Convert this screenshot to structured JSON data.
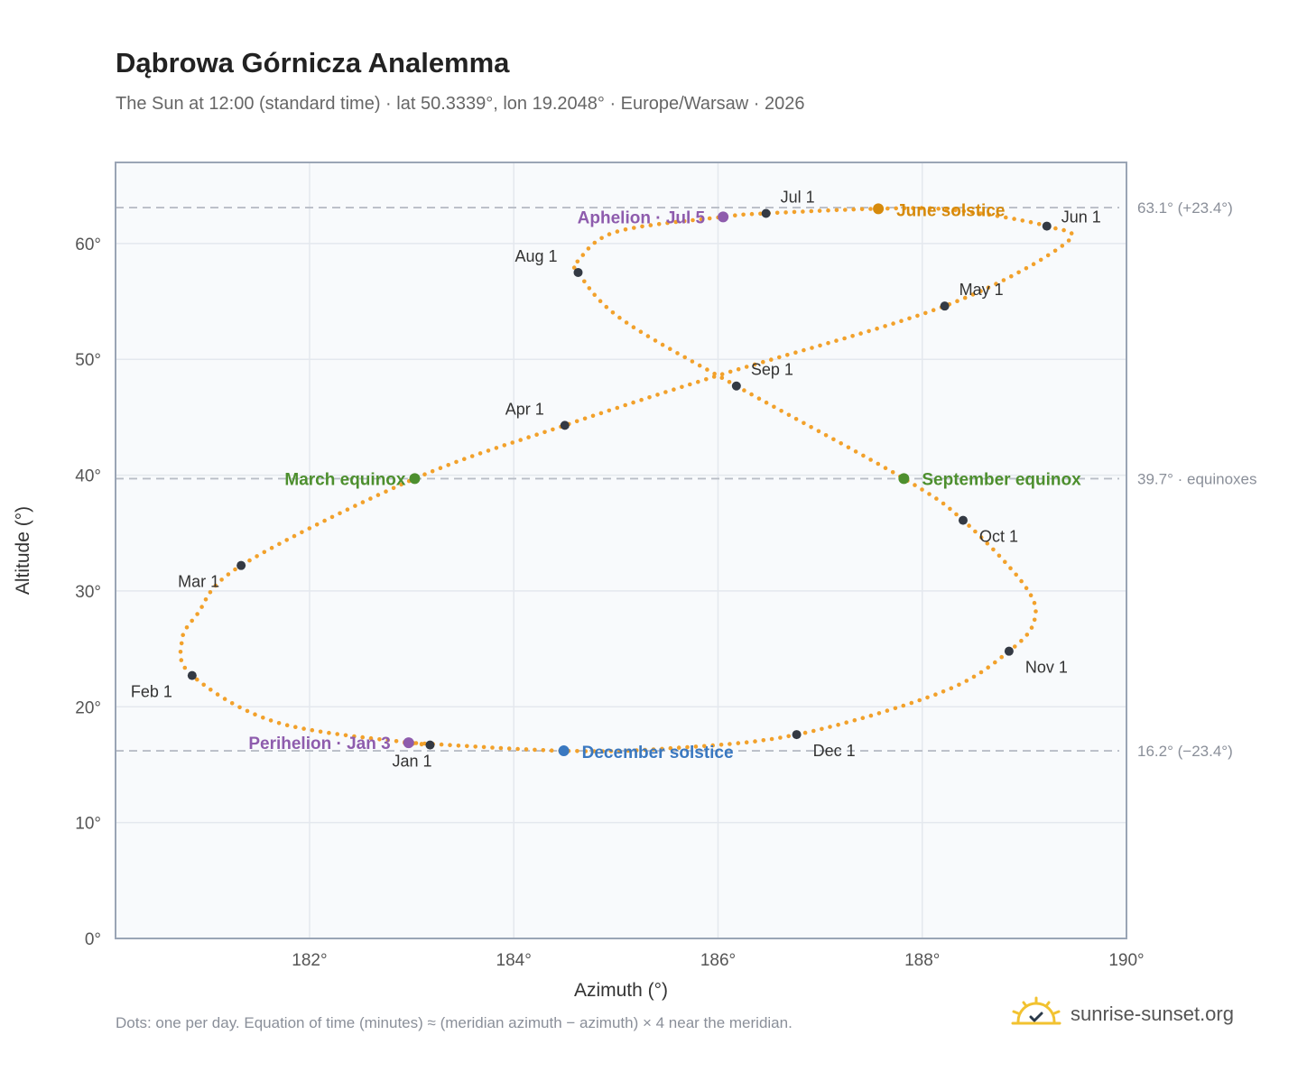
{
  "header": {
    "title": "Dąbrowa Górnicza Analemma",
    "subtitle": "The Sun at 12:00 (standard time) · lat 50.3339°, lon 19.2048° · Europe/Warsaw · 2026"
  },
  "footer": {
    "note": "Dots: one per day. Equation of time (minutes) ≈ (meridian azimuth − azimuth) × 4 near the meridian.",
    "brand": "sunrise-sunset.org",
    "brand_icon": "sun-icon"
  },
  "colors": {
    "curve": "#f2a12b",
    "month_marker": "#343a44",
    "equinox": "#4d8f2e",
    "june_solstice": "#d68a0c",
    "december_solstice": "#3a78c0",
    "apsis": "#8e5cad",
    "reference_line": "#b8bdc6",
    "plot_background": "#f8fafc",
    "frame": "#9aa5b5"
  },
  "chart_data": {
    "type": "scatter",
    "xlabel": "Azimuth (°)",
    "ylabel": "Altitude (°)",
    "xlim": [
      180.1,
      190
    ],
    "ylim": [
      0,
      67
    ],
    "xticks": [
      {
        "value": 182,
        "label": "182°"
      },
      {
        "value": 184,
        "label": "184°"
      },
      {
        "value": 186,
        "label": "186°"
      },
      {
        "value": 188,
        "label": "188°"
      },
      {
        "value": 190,
        "label": "190°"
      }
    ],
    "yticks": [
      {
        "value": 0,
        "label": "0°"
      },
      {
        "value": 10,
        "label": "10°"
      },
      {
        "value": 20,
        "label": "20°"
      },
      {
        "value": 30,
        "label": "30°"
      },
      {
        "value": 40,
        "label": "40°"
      },
      {
        "value": 50,
        "label": "50°"
      },
      {
        "value": 60,
        "label": "60°"
      }
    ],
    "grid": true,
    "reference_lines": [
      {
        "y": 63.1,
        "label": "63.1° (+23.4°)"
      },
      {
        "y": 39.7,
        "label": "39.7° · equinoxes"
      },
      {
        "y": 16.2,
        "label": "16.2° (−23.4°)"
      }
    ],
    "month_markers": [
      {
        "label": "Jan 1",
        "x": 183.18,
        "y": 16.7
      },
      {
        "label": "Feb 1",
        "x": 180.85,
        "y": 22.7
      },
      {
        "label": "Mar 1",
        "x": 181.33,
        "y": 32.2
      },
      {
        "label": "Apr 1",
        "x": 184.5,
        "y": 44.3
      },
      {
        "label": "May 1",
        "x": 188.22,
        "y": 54.6
      },
      {
        "label": "Jun 1",
        "x": 189.22,
        "y": 61.5
      },
      {
        "label": "Jul 1",
        "x": 186.47,
        "y": 62.6
      },
      {
        "label": "Aug 1",
        "x": 184.63,
        "y": 57.5
      },
      {
        "label": "Sep 1",
        "x": 186.18,
        "y": 47.7
      },
      {
        "label": "Oct 1",
        "x": 188.4,
        "y": 36.1
      },
      {
        "label": "Nov 1",
        "x": 188.85,
        "y": 24.8
      },
      {
        "label": "Dec 1",
        "x": 186.77,
        "y": 17.6
      }
    ],
    "events": [
      {
        "label": "March equinox",
        "x": 183.03,
        "y": 39.7,
        "color_key": "equinox"
      },
      {
        "label": "September equinox",
        "x": 187.82,
        "y": 39.7,
        "color_key": "equinox"
      },
      {
        "label": "June solstice",
        "x": 187.57,
        "y": 63.0,
        "color_key": "june_solstice"
      },
      {
        "label": "December solstice",
        "x": 184.49,
        "y": 16.2,
        "color_key": "december_solstice"
      },
      {
        "label": "Aphelion · Jul 5",
        "x": 186.05,
        "y": 62.3,
        "color_key": "apsis"
      },
      {
        "label": "Perihelion · Jan 3",
        "x": 182.97,
        "y": 16.9,
        "color_key": "apsis"
      }
    ],
    "daily_curve": {
      "description": "one dot per day",
      "points": [
        [
          183.18,
          16.7
        ],
        [
          181.7,
          18.6
        ],
        [
          180.85,
          22.7
        ],
        [
          180.75,
          25.7
        ],
        [
          180.9,
          28.0
        ],
        [
          181.33,
          32.2
        ],
        [
          183.03,
          39.7
        ],
        [
          184.5,
          44.3
        ],
        [
          186.0,
          48.6
        ],
        [
          188.22,
          54.6
        ],
        [
          189.4,
          60.0
        ],
        [
          189.22,
          61.5
        ],
        [
          188.3,
          62.9
        ],
        [
          187.57,
          63.0
        ],
        [
          186.47,
          62.6
        ],
        [
          186.05,
          62.3
        ],
        [
          185.0,
          61.0
        ],
        [
          184.63,
          58.5
        ],
        [
          184.63,
          57.5
        ],
        [
          185.05,
          53.5
        ],
        [
          186.18,
          47.7
        ],
        [
          187.82,
          39.7
        ],
        [
          188.4,
          36.1
        ],
        [
          189.0,
          30.5
        ],
        [
          189.1,
          27.5
        ],
        [
          188.85,
          24.8
        ],
        [
          188.2,
          21.3
        ],
        [
          186.77,
          17.6
        ],
        [
          185.5,
          16.4
        ],
        [
          184.49,
          16.2
        ],
        [
          182.97,
          16.9
        ],
        [
          183.18,
          16.7
        ]
      ]
    }
  }
}
